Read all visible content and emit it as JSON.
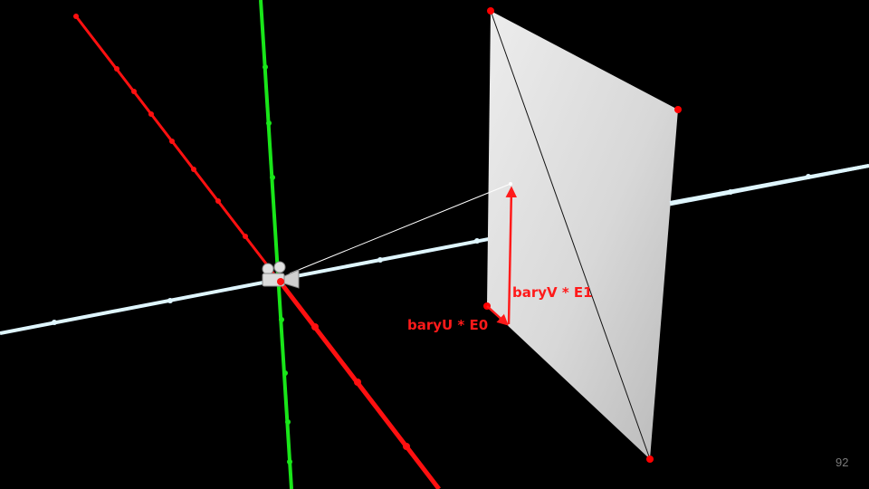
{
  "diagram": {
    "labels": {
      "bary_v": "baryV  * E1",
      "bary_u": "baryU  * E0"
    },
    "colors": {
      "x_axis": "#ff1010",
      "y_axis": "#19e619",
      "z_axis": "#dff6ff",
      "triangle": "#e4e4e4",
      "vertex": "#ff0000",
      "ray": "#ffffff",
      "vector": "#ff1a1a"
    },
    "icons": [
      "camera-icon"
    ]
  },
  "page_number": "92"
}
